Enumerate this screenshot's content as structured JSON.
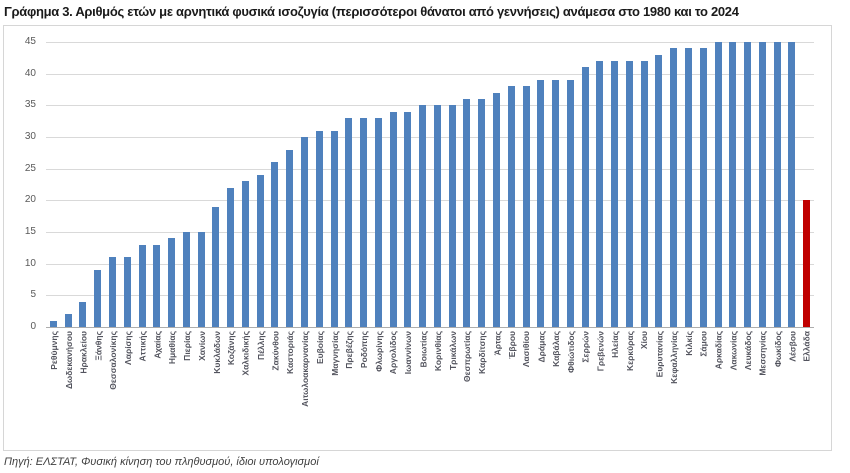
{
  "title": "Γράφημα 3. Αριθμός ετών με αρνητικά φυσικά ισοζυγία (περισσότεροι θάνατοι από γεννήσεις) ανάμεσα στο 1980 και το 2024",
  "source": "Πηγή: ΕΛΣΤΑΤ, Φυσική κίνηση του πληθυσμού, ίδιοι υπολογισμοί",
  "chart_data": {
    "type": "bar",
    "title": "Γράφημα 3. Αριθμός ετών με αρνητικά φυσικά ισοζυγία (περισσότεροι θάνατοι από γεννήσεις) ανάμεσα στο 1980 και το 2024",
    "xlabel": "",
    "ylabel": "",
    "ylim": [
      0,
      45
    ],
    "yticks": [
      0,
      5,
      10,
      15,
      20,
      25,
      30,
      35,
      40,
      45
    ],
    "grid": true,
    "legend": "none",
    "bar_color": "#4F81BD",
    "highlight_color": "#C00000",
    "highlight_category": "Ελλάδα",
    "highlight_index": 51,
    "categories": [
      "Ρεθύμνης",
      "Δωδεκανήσου",
      "Ηρακλείου",
      "Ξάνθης",
      "Θεσσαλονίκης",
      "Λαρίσης",
      "Αττικής",
      "Αχαίας",
      "Ημαθίας",
      "Πιερίας",
      "Χανίων",
      "Κυκλάδων",
      "Κοζάνης",
      "Χαλκιδικής",
      "Πέλλης",
      "Ζακύνθου",
      "Καστοριάς",
      "Αιτωλοακαρνανίας",
      "Ευβοίας",
      "Μαγνησίας",
      "Πρεβέζης",
      "Ροδόπης",
      "Φλωρίνης",
      "Αργολίδος",
      "Ιωαννίνων",
      "Βοιωτίας",
      "Κορινθίας",
      "Τρικάλων",
      "Θεσπρωτίας",
      "Καρδίτσης",
      "Άρτας",
      "Έβρου",
      "Λασιθίου",
      "Δράμας",
      "Καβάλας",
      "Φθιώτιδος",
      "Σερρών",
      "Γρεβενών",
      "Ηλείας",
      "Κερκύρας",
      "Χίου",
      "Ευρυτανίας",
      "Κεφαλληνίας",
      "Κιλκίς",
      "Σάμου",
      "Αρκαδίας",
      "Λακωνίας",
      "Λευκάδος",
      "Μεσσηνίας",
      "Φωκίδος",
      "Λέσβου",
      "Ελλάδα"
    ],
    "values": [
      1,
      2,
      4,
      9,
      11,
      11,
      13,
      13,
      14,
      15,
      15,
      19,
      22,
      23,
      24,
      26,
      28,
      30,
      31,
      31,
      33,
      33,
      33,
      34,
      34,
      35,
      35,
      35,
      36,
      36,
      37,
      38,
      38,
      39,
      39,
      39,
      41,
      42,
      42,
      42,
      42,
      43,
      44,
      44,
      44,
      45,
      45,
      45,
      45,
      45,
      45,
      20
    ]
  }
}
